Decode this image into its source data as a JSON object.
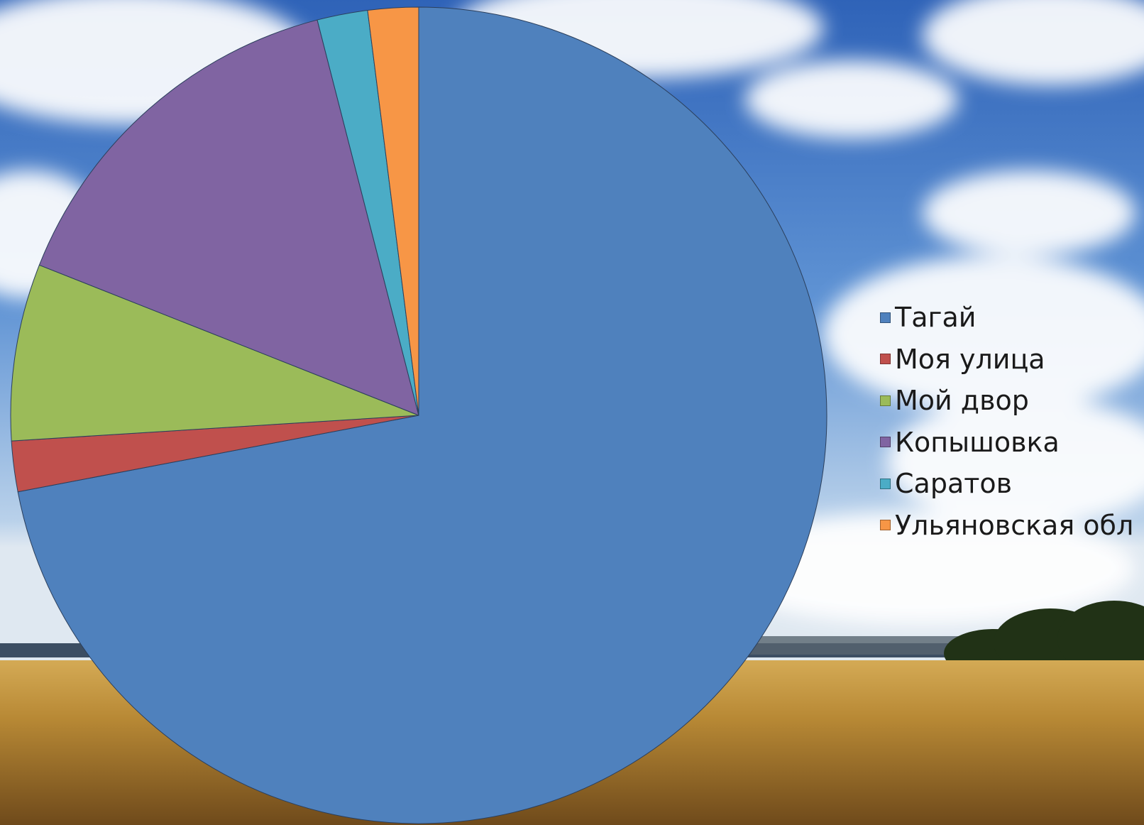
{
  "chart_data": {
    "type": "pie",
    "title": "",
    "categories": [
      "Тагай",
      "Моя улица",
      "Мой двор",
      "Копышовка",
      "Саратов",
      "Ульяновская обл"
    ],
    "values": [
      72,
      2,
      7,
      15,
      2,
      2
    ],
    "colors": [
      "#4f81bd",
      "#c0504d",
      "#9bbb59",
      "#8064a2",
      "#4bacc6",
      "#f79646"
    ],
    "start_angle_deg": 0,
    "direction": "clockwise",
    "legend_position": "right"
  }
}
